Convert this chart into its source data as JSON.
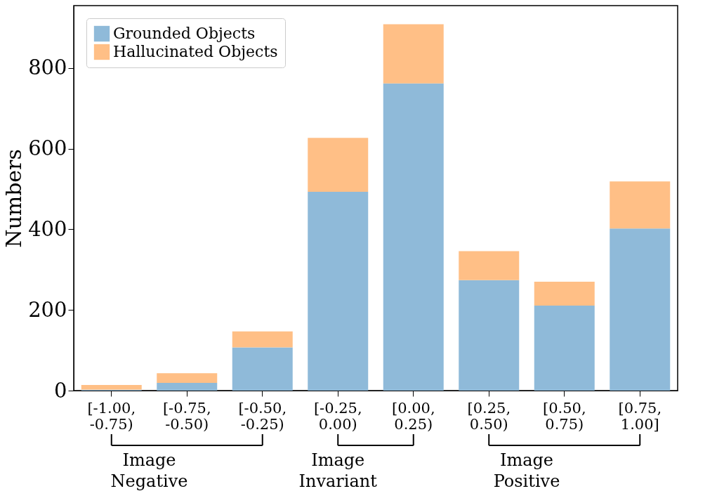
{
  "chart_data": {
    "type": "bar",
    "stacked": true,
    "ylabel": "Numbers",
    "categories": [
      "[-1.00,\n-0.75)",
      "[-0.75,\n-0.50)",
      "[-0.50,\n-0.25)",
      "[-0.25,\n0.00)",
      "[0.00,\n0.25)",
      "[0.25,\n0.50)",
      "[0.50,\n0.75)",
      "[0.75,\n1.00]"
    ],
    "series": [
      {
        "name": "Grounded Objects",
        "color": "#8fbad9",
        "values": [
          2,
          19,
          107,
          493,
          762,
          274,
          211,
          402
        ]
      },
      {
        "name": "Hallucinated Objects",
        "color": "#ffbf86",
        "values": [
          12,
          24,
          40,
          134,
          147,
          72,
          59,
          117
        ]
      }
    ],
    "ylim": [
      0,
      955
    ],
    "yticks": [
      0,
      200,
      400,
      600,
      800
    ],
    "grid": false,
    "legend": "top left",
    "annotations": [
      "Image\nNegative",
      "Image\nInvariant",
      "Image\nPositive"
    ]
  }
}
